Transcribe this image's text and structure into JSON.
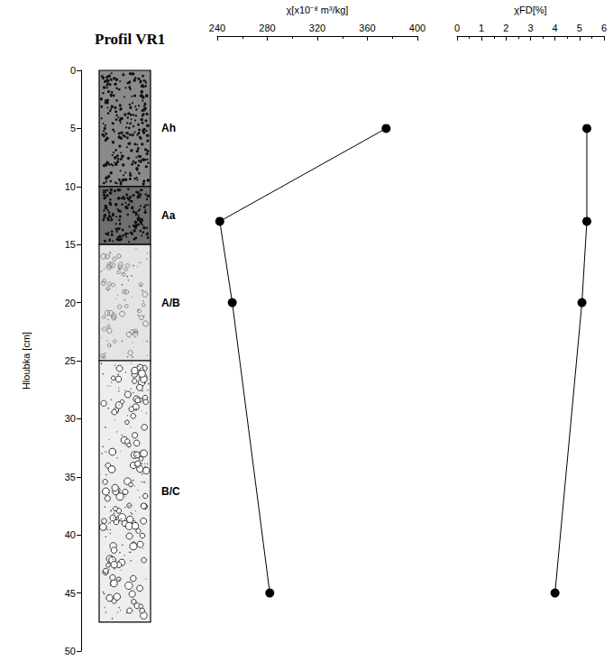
{
  "title": "Profil VR1",
  "depth_axis": {
    "label": "Hloubka [cm]",
    "lim": [
      0,
      50
    ],
    "ticks": [
      0,
      5,
      10,
      15,
      20,
      25,
      30,
      35,
      40,
      45,
      50
    ]
  },
  "horizons": [
    {
      "name": "Ah",
      "top": 0,
      "bottom": 10,
      "color": "#8a8a8a"
    },
    {
      "name": "Aa",
      "top": 10,
      "bottom": 15,
      "color": "#6f6f6f"
    },
    {
      "name": "A/B",
      "top": 15,
      "bottom": 25,
      "color": "#e4e4e4"
    },
    {
      "name": "B/C",
      "top": 25,
      "bottom": 47.5,
      "color": "#eeeeee"
    }
  ],
  "chart_data": [
    {
      "type": "line",
      "x_label": "χ[x10⁻⁸ m³/kg]",
      "y": [
        5,
        13,
        20,
        45
      ],
      "values": [
        375,
        242,
        252,
        282
      ],
      "xlim": [
        240,
        400
      ],
      "xticks": [
        240,
        280,
        320,
        360,
        400
      ],
      "color": "#000000",
      "marker": "circle"
    },
    {
      "type": "line",
      "x_label": "χFD[%]",
      "y": [
        5,
        13,
        20,
        45
      ],
      "values": [
        5.3,
        5.3,
        5.1,
        4.0
      ],
      "xlim": [
        0,
        6
      ],
      "xticks": [
        0,
        1,
        2,
        3,
        4,
        5,
        6
      ],
      "color": "#000000",
      "marker": "circle"
    }
  ]
}
